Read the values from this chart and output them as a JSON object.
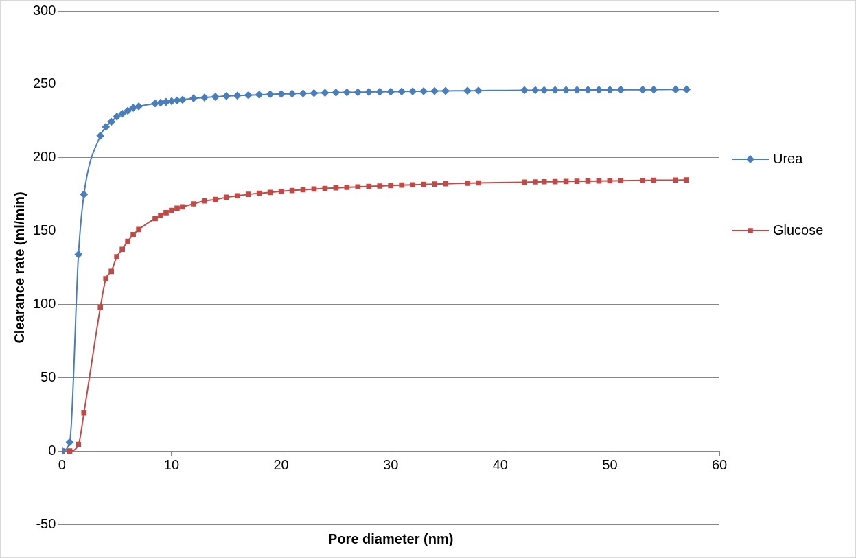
{
  "chart_data": {
    "type": "line",
    "xlabel": "Pore diameter (nm)",
    "ylabel": "Clearance rate (ml/min)",
    "x": [
      0,
      0.7,
      1.5,
      2,
      3.5,
      4,
      4.5,
      5,
      5.5,
      6,
      6.5,
      7,
      8.5,
      9,
      9.5,
      10,
      10.5,
      11,
      12,
      13,
      14,
      15,
      16,
      17,
      18,
      19,
      20,
      21,
      22,
      23,
      24,
      25,
      26,
      27,
      28,
      29,
      30,
      31,
      32,
      33,
      34,
      35,
      37,
      38,
      42.2,
      43.2,
      44,
      45,
      46,
      47,
      48,
      49,
      50,
      51,
      53,
      54,
      56,
      57
    ],
    "series": [
      {
        "name": "Urea",
        "color": "#4a7ebb",
        "marker": "diamond",
        "values": [
          0,
          6,
          134,
          175,
          215,
          221,
          224.5,
          228,
          230,
          232,
          234,
          235,
          237,
          237.5,
          238,
          238.5,
          239,
          239.5,
          240.5,
          241,
          241.5,
          242,
          242.3,
          242.6,
          242.9,
          243.2,
          243.4,
          243.6,
          243.8,
          244,
          244.2,
          244.4,
          244.5,
          244.6,
          244.8,
          244.9,
          245,
          245.1,
          245.2,
          245.3,
          245.4,
          245.5,
          245.6,
          245.7,
          246,
          246,
          246,
          246.1,
          246.1,
          246.1,
          246.2,
          246.2,
          246.2,
          246.3,
          246.3,
          246.4,
          246.5,
          246.5
        ]
      },
      {
        "name": "Glucose",
        "color": "#be4b48",
        "marker": "square",
        "values": [
          0,
          0,
          4.5,
          26,
          98,
          117.5,
          122.5,
          132.5,
          137.5,
          143,
          147.5,
          151,
          158.5,
          160.5,
          162.5,
          164,
          165.5,
          166.5,
          168.5,
          170.5,
          171.5,
          173,
          174,
          175,
          175.7,
          176.3,
          177,
          177.6,
          178.1,
          178.6,
          179,
          179.4,
          179.8,
          180.1,
          180.4,
          180.7,
          181,
          181.3,
          181.5,
          181.8,
          182,
          182.2,
          182.6,
          182.8,
          183.3,
          183.5,
          183.6,
          183.7,
          183.8,
          183.9,
          184,
          184.1,
          184.2,
          184.3,
          184.5,
          184.6,
          184.7,
          184.8
        ]
      }
    ],
    "xlim": [
      0,
      60
    ],
    "xticks": [
      0,
      10,
      20,
      30,
      40,
      50,
      60
    ],
    "ylim": [
      -50,
      300
    ],
    "yticks": [
      -50,
      0,
      50,
      100,
      150,
      200,
      250,
      300
    ],
    "grid": "y",
    "legend": "right"
  }
}
